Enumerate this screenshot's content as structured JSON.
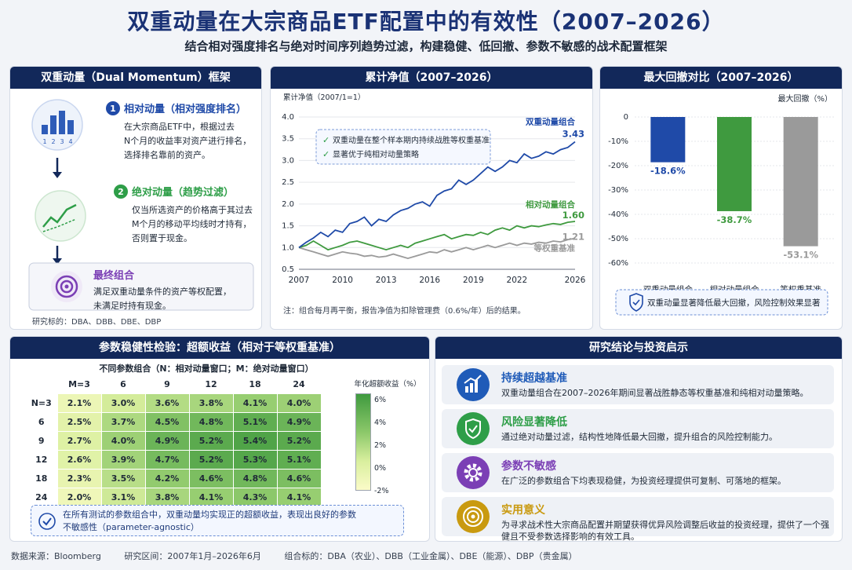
{
  "header": {
    "title": "双重动量在大宗商品ETF配置中的有效性（2007–2026）",
    "subtitle": "结合相对强度排名与绝对时间序列趋势过滤，构建稳健、低回撤、参数不敏感的战术配置框架"
  },
  "framework": {
    "title": "双重动量（Dual Momentum）框架",
    "step1_num": "1",
    "step1_title": "相对动量（相对强度排名）",
    "step1_line1": "在大宗商品ETF中，根据过去",
    "step1_line2": "N个月的收益率对资产进行排名，",
    "step1_line3": "选择排名靠前的资产。",
    "step1_ticks": [
      "1",
      "2",
      "3",
      "4"
    ],
    "step2_num": "2",
    "step2_title": "绝对动量（趋势过滤）",
    "step2_line1": "仅当所选资产的价格高于其过去",
    "step2_line2": "M个月的移动平均线时才持有，",
    "step2_line3": "否则置于现金。",
    "final_title": "最终组合",
    "final_line1": "满足双重动量条件的资产等权配置，",
    "final_line2": "未满足时持有现金。",
    "targets": "研究标的：DBA、DBB、DBE、DBP"
  },
  "nav_panel": {
    "title": "累计净值（2007–2026）",
    "ylabel": "累计净值（2007/1=1）",
    "legend1": "双重动量在整个样本期内持续战胜等权重基准",
    "legend2": "显著优于纯相对动量策略",
    "note": "注：组合每月再平衡，报告净值为扣除管理费（0.6%/年）后的结果。"
  },
  "dd_panel": {
    "title": "最大回撤对比（2007–2026）",
    "ylabel": "最大回撤（%）",
    "note": "双重动量显著降低最大回撤，风险控制效果显著"
  },
  "heatmap_panel": {
    "title": "参数稳健性检验：超额收益（相对于等权重基准）",
    "subtitle": "不同参数组合（N：相对动量窗口；M：绝对动量窗口）",
    "colorbar_label": "年化超额收益（%）",
    "colorbar_ticks": [
      "6%",
      "4%",
      "2%",
      "0%",
      "-2%"
    ],
    "note_line1": "在所有测试的参数组合中，双重动量均实现正的超额收益，表现出良好的参数",
    "note_line2": "不敏感性（parameter-agnostic）"
  },
  "conclusions": {
    "title": "研究结论与投资启示",
    "items": [
      {
        "title": "持续超越基准",
        "desc": "双重动量组合在2007–2026年期间显著战胜静态等权重基准和纯相对动量策略。",
        "color": "#1f5bb8",
        "icon": "chart-growth-icon"
      },
      {
        "title": "风险显著降低",
        "desc": "通过绝对动量过滤，结构性地降低最大回撤，提升组合的风险控制能力。",
        "color": "#2e9e48",
        "icon": "shield-check-icon"
      },
      {
        "title": "参数不敏感",
        "desc": "在广泛的参数组合下均表现稳健，为投资经理提供可复制、可落地的框架。",
        "color": "#7b3fb5",
        "icon": "gear-icon"
      },
      {
        "title": "实用意义",
        "desc": "为寻求战术性大宗商品配置并期望获得优异风险调整后收益的投资经理，提供了一个强健且不受参数选择影响的有效工具。",
        "color": "#c99a10",
        "icon": "target-icon"
      }
    ]
  },
  "footer": {
    "source": "数据来源：Bloomberg",
    "period": "研究区间：2007年1月–2026年6月",
    "assets": "组合标的：DBA（农业）、DBB（工业金属）、DBE（能源）、DBP（贵金属）"
  },
  "colors": {
    "navy": "#12285a",
    "dual": "#1f4aa8",
    "relative": "#3f9a3f",
    "equal": "#9a9a9a"
  },
  "chart_data": [
    {
      "type": "line",
      "title": "累计净值（2007–2026）",
      "ylabel": "累计净值（2007/1=1）",
      "xlim": [
        2007,
        2026
      ],
      "ylim": [
        0.5,
        4.0
      ],
      "xticks": [
        "2007",
        "2010",
        "2013",
        "2016",
        "2019",
        "2022",
        "2026"
      ],
      "yticks": [
        "0.5",
        "1.0",
        "1.5",
        "2.0",
        "2.5",
        "3.0",
        "3.5",
        "4.0"
      ],
      "series": [
        {
          "name": "双重动量组合",
          "end_label": "3.43",
          "color": "#1f4aa8",
          "points": [
            [
              2007,
              1.0
            ],
            [
              2007.5,
              1.12
            ],
            [
              2008,
              1.22
            ],
            [
              2008.5,
              1.35
            ],
            [
              2009,
              1.25
            ],
            [
              2009.5,
              1.4
            ],
            [
              2010,
              1.35
            ],
            [
              2010.5,
              1.55
            ],
            [
              2011,
              1.6
            ],
            [
              2011.5,
              1.7
            ],
            [
              2012,
              1.5
            ],
            [
              2012.5,
              1.65
            ],
            [
              2013,
              1.6
            ],
            [
              2013.5,
              1.75
            ],
            [
              2014,
              1.85
            ],
            [
              2014.5,
              1.9
            ],
            [
              2015,
              2.0
            ],
            [
              2015.5,
              2.05
            ],
            [
              2016,
              1.95
            ],
            [
              2016.5,
              2.2
            ],
            [
              2017,
              2.3
            ],
            [
              2017.5,
              2.35
            ],
            [
              2018,
              2.55
            ],
            [
              2018.5,
              2.45
            ],
            [
              2019,
              2.55
            ],
            [
              2019.5,
              2.7
            ],
            [
              2020,
              2.85
            ],
            [
              2020.5,
              2.75
            ],
            [
              2021,
              2.85
            ],
            [
              2021.5,
              3.0
            ],
            [
              2022,
              2.95
            ],
            [
              2022.5,
              3.15
            ],
            [
              2023,
              3.05
            ],
            [
              2023.5,
              3.1
            ],
            [
              2024,
              3.2
            ],
            [
              2024.5,
              3.15
            ],
            [
              2025,
              3.25
            ],
            [
              2025.5,
              3.3
            ],
            [
              2026,
              3.43
            ]
          ]
        },
        {
          "name": "相对动量组合",
          "end_label": "1.60",
          "color": "#3f9a3f",
          "points": [
            [
              2007,
              1.0
            ],
            [
              2007.5,
              1.05
            ],
            [
              2008,
              1.15
            ],
            [
              2008.5,
              1.05
            ],
            [
              2009,
              0.95
            ],
            [
              2009.5,
              1.0
            ],
            [
              2010,
              1.05
            ],
            [
              2010.5,
              1.12
            ],
            [
              2011,
              1.15
            ],
            [
              2011.5,
              1.1
            ],
            [
              2012,
              1.05
            ],
            [
              2012.5,
              1.0
            ],
            [
              2013,
              0.95
            ],
            [
              2013.5,
              1.0
            ],
            [
              2014,
              1.05
            ],
            [
              2014.5,
              1.0
            ],
            [
              2015,
              1.1
            ],
            [
              2015.5,
              1.15
            ],
            [
              2016,
              1.2
            ],
            [
              2016.5,
              1.25
            ],
            [
              2017,
              1.3
            ],
            [
              2017.5,
              1.2
            ],
            [
              2018,
              1.25
            ],
            [
              2018.5,
              1.3
            ],
            [
              2019,
              1.28
            ],
            [
              2019.5,
              1.35
            ],
            [
              2020,
              1.3
            ],
            [
              2020.5,
              1.4
            ],
            [
              2021,
              1.45
            ],
            [
              2021.5,
              1.4
            ],
            [
              2022,
              1.5
            ],
            [
              2022.5,
              1.45
            ],
            [
              2023,
              1.5
            ],
            [
              2023.5,
              1.48
            ],
            [
              2024,
              1.52
            ],
            [
              2024.5,
              1.55
            ],
            [
              2025,
              1.53
            ],
            [
              2025.5,
              1.58
            ],
            [
              2026,
              1.6
            ]
          ]
        },
        {
          "name": "等权重基准",
          "end_label": "1.21",
          "color": "#9a9a9a",
          "points": [
            [
              2007,
              1.0
            ],
            [
              2007.5,
              0.95
            ],
            [
              2008,
              0.9
            ],
            [
              2008.5,
              0.85
            ],
            [
              2009,
              0.8
            ],
            [
              2009.5,
              0.85
            ],
            [
              2010,
              0.9
            ],
            [
              2010.5,
              0.87
            ],
            [
              2011,
              0.85
            ],
            [
              2011.5,
              0.8
            ],
            [
              2012,
              0.82
            ],
            [
              2012.5,
              0.78
            ],
            [
              2013,
              0.8
            ],
            [
              2013.5,
              0.85
            ],
            [
              2014,
              0.8
            ],
            [
              2014.5,
              0.75
            ],
            [
              2015,
              0.8
            ],
            [
              2015.5,
              0.85
            ],
            [
              2016,
              0.9
            ],
            [
              2016.5,
              0.88
            ],
            [
              2017,
              0.95
            ],
            [
              2017.5,
              0.9
            ],
            [
              2018,
              0.95
            ],
            [
              2018.5,
              1.0
            ],
            [
              2019,
              0.95
            ],
            [
              2019.5,
              1.0
            ],
            [
              2020,
              1.05
            ],
            [
              2020.5,
              1.0
            ],
            [
              2021,
              1.05
            ],
            [
              2021.5,
              1.1
            ],
            [
              2022,
              1.05
            ],
            [
              2022.5,
              1.1
            ],
            [
              2023,
              1.08
            ],
            [
              2023.5,
              1.12
            ],
            [
              2024,
              1.1
            ],
            [
              2024.5,
              1.15
            ],
            [
              2025,
              1.13
            ],
            [
              2025.5,
              1.18
            ],
            [
              2026,
              1.21
            ]
          ]
        }
      ]
    },
    {
      "type": "bar",
      "title": "最大回撤对比（2007–2026）",
      "ylabel": "最大回撤（%）",
      "categories": [
        "双重动量组合",
        "相对动量组合",
        "等权重基准"
      ],
      "values": [
        -18.6,
        -38.7,
        -53.1
      ],
      "labels": [
        "-18.6%",
        "-38.7%",
        "-53.1%"
      ],
      "colors": [
        "#1f4aa8",
        "#3f9a3f",
        "#9a9a9a"
      ],
      "ylim": [
        -60,
        0
      ],
      "yticks": [
        "0",
        "-10%",
        "-20%",
        "-30%",
        "-40%",
        "-50%",
        "-60%"
      ]
    },
    {
      "type": "heatmap",
      "title": "参数稳健性检验：超额收益（相对于等权重基准）",
      "col_labels": [
        "M=3",
        "6",
        "9",
        "12",
        "18",
        "24"
      ],
      "row_labels": [
        "N=3",
        "6",
        "9",
        "12",
        "18",
        "24"
      ],
      "values": [
        [
          2.1,
          3.0,
          3.6,
          3.8,
          4.1,
          4.0
        ],
        [
          2.5,
          3.7,
          4.5,
          4.8,
          5.1,
          4.9
        ],
        [
          2.7,
          4.0,
          4.9,
          5.2,
          5.4,
          5.2
        ],
        [
          2.6,
          3.9,
          4.7,
          5.2,
          5.3,
          5.1
        ],
        [
          2.3,
          3.5,
          4.2,
          4.6,
          4.8,
          4.6
        ],
        [
          2.0,
          3.1,
          3.8,
          4.1,
          4.3,
          4.1
        ]
      ],
      "unit": "%",
      "color_range": [
        -2,
        6
      ]
    }
  ]
}
